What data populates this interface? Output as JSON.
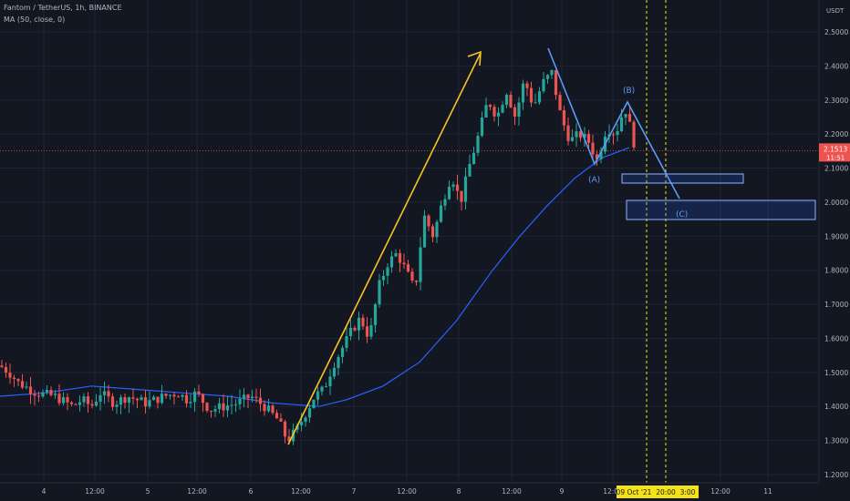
{
  "header": {
    "symbol_line": "Fantom / TetherUS, 1h, BINANCE",
    "indicator_line": "MA (50, close, 0)"
  },
  "currency_label": "USDT",
  "colors": {
    "background": "#131722",
    "grid": "#1f2433",
    "candle_up": "#26a69a",
    "candle_down": "#ef5350",
    "ma_line": "#2962ff",
    "arrow": "#f7c325",
    "wave": "#5b9cf6",
    "price_tag": "#ef5350",
    "time_highlight": "#f5e318"
  },
  "price_tag": {
    "value": "2.1513",
    "countdown": "11:51"
  },
  "annotations": {
    "A": "(A)",
    "B": "(B)",
    "C": "(C)"
  },
  "chart_data": {
    "type": "candlestick",
    "title": "Fantom / TetherUS, 1h, BINANCE",
    "ylim": [
      1.18,
      2.55
    ],
    "y_ticks": [
      "2.5000",
      "2.4000",
      "2.3000",
      "2.2000",
      "2.1000",
      "2.0000",
      "1.9000",
      "1.8000",
      "1.7000",
      "1.6000",
      "1.5000",
      "1.4000",
      "1.3000",
      "1.2000"
    ],
    "x_ticks": [
      "4",
      "12:00",
      "5",
      "12:00",
      "6",
      "12:00",
      "7",
      "12:00",
      "8",
      "12:00",
      "9",
      "12:00",
      "12:00",
      "11"
    ],
    "x_highlight": [
      "09 Oct '21",
      "20:00",
      "3:00"
    ],
    "last_price": 2.1513,
    "price_keypoints": [
      [
        0,
        1.52
      ],
      [
        10,
        1.5
      ],
      [
        20,
        1.47
      ],
      [
        40,
        1.44
      ],
      [
        60,
        1.43
      ],
      [
        80,
        1.4
      ],
      [
        90,
        1.42
      ],
      [
        100,
        1.4
      ],
      [
        110,
        1.44
      ],
      [
        125,
        1.41
      ],
      [
        140,
        1.43
      ],
      [
        160,
        1.41
      ],
      [
        180,
        1.43
      ],
      [
        195,
        1.44
      ],
      [
        205,
        1.42
      ],
      [
        215,
        1.44
      ],
      [
        230,
        1.39
      ],
      [
        245,
        1.4
      ],
      [
        260,
        1.41
      ],
      [
        275,
        1.43
      ],
      [
        290,
        1.4
      ],
      [
        305,
        1.36
      ],
      [
        315,
        1.3
      ],
      [
        325,
        1.33
      ],
      [
        335,
        1.38
      ],
      [
        345,
        1.43
      ],
      [
        355,
        1.45
      ],
      [
        365,
        1.52
      ],
      [
        375,
        1.57
      ],
      [
        385,
        1.62
      ],
      [
        395,
        1.66
      ],
      [
        405,
        1.6
      ],
      [
        415,
        1.75
      ],
      [
        425,
        1.82
      ],
      [
        435,
        1.85
      ],
      [
        445,
        1.8
      ],
      [
        455,
        1.74
      ],
      [
        465,
        1.96
      ],
      [
        475,
        1.9
      ],
      [
        485,
        2.0
      ],
      [
        495,
        2.08
      ],
      [
        505,
        2.0
      ],
      [
        515,
        2.11
      ],
      [
        525,
        2.2
      ],
      [
        535,
        2.3
      ],
      [
        545,
        2.25
      ],
      [
        555,
        2.33
      ],
      [
        565,
        2.25
      ],
      [
        575,
        2.36
      ],
      [
        585,
        2.28
      ],
      [
        595,
        2.35
      ],
      [
        605,
        2.38
      ],
      [
        615,
        2.25
      ],
      [
        625,
        2.18
      ],
      [
        635,
        2.2
      ],
      [
        645,
        2.18
      ],
      [
        655,
        2.12
      ],
      [
        665,
        2.22
      ],
      [
        675,
        2.2
      ],
      [
        685,
        2.28
      ],
      [
        693,
        2.2
      ],
      [
        697,
        2.15
      ]
    ],
    "ma50_keypoints": [
      [
        0,
        1.43
      ],
      [
        50,
        1.44
      ],
      [
        100,
        1.46
      ],
      [
        150,
        1.45
      ],
      [
        200,
        1.44
      ],
      [
        250,
        1.43
      ],
      [
        300,
        1.41
      ],
      [
        350,
        1.4
      ],
      [
        380,
        1.42
      ],
      [
        420,
        1.46
      ],
      [
        460,
        1.53
      ],
      [
        500,
        1.65
      ],
      [
        540,
        1.8
      ],
      [
        570,
        1.9
      ],
      [
        600,
        1.99
      ],
      [
        630,
        2.07
      ],
      [
        660,
        2.13
      ],
      [
        690,
        2.16
      ]
    ],
    "grid": true
  }
}
